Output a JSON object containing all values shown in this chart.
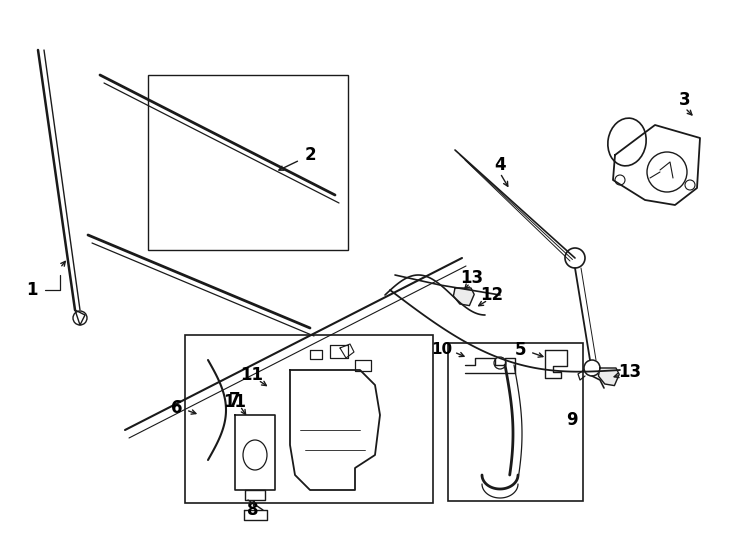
{
  "bg_color": "#ffffff",
  "lc": "#1a1a1a",
  "fig_width": 7.34,
  "fig_height": 5.4,
  "dpi": 100
}
